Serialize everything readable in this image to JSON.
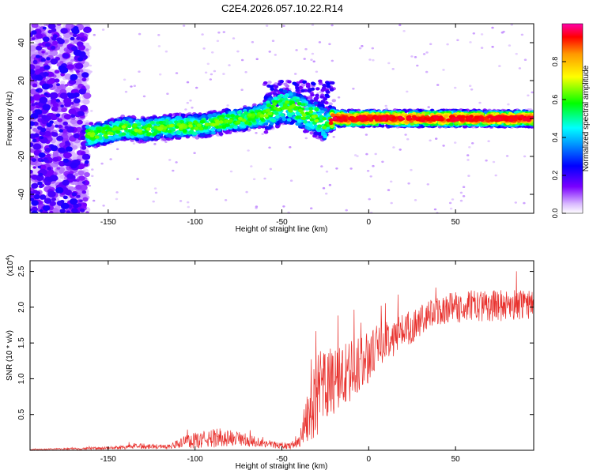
{
  "title": "C2E4.2026.057.10.22.R14",
  "chart_data": [
    {
      "type": "heatmap",
      "title": "C2E4.2026.057.10.22.R14",
      "xlabel": "Height of straight line (km)",
      "ylabel": "Frequency (Hz)",
      "xlim": [
        -195,
        95
      ],
      "ylim": [
        -50,
        50
      ],
      "xticks": [
        -150,
        -100,
        -50,
        0,
        50
      ],
      "yticks": [
        -40,
        -20,
        0,
        20,
        40
      ],
      "colorbar": {
        "label": "Normalized spectral amplitude",
        "range": [
          0,
          1
        ],
        "ticks": [
          "0.0",
          "0.2",
          "0.4",
          "0.6",
          "0.8"
        ],
        "tick_values": [
          0.0,
          0.2,
          0.4,
          0.6,
          0.8
        ]
      },
      "ridge": {
        "x": [
          -160,
          -150,
          -140,
          -130,
          -120,
          -110,
          -100,
          -90,
          -80,
          -70,
          -60,
          -55,
          -50,
          -45,
          -40,
          -35,
          -30,
          -25,
          -20,
          -10,
          0,
          10,
          20,
          30,
          40,
          50,
          60,
          70,
          80,
          90
        ],
        "y": [
          -9,
          -7,
          -5,
          -6,
          -5,
          -4,
          -4,
          -3,
          -1,
          0,
          2,
          4,
          7,
          6,
          4,
          2,
          0,
          -3,
          0,
          0,
          0,
          0,
          0,
          0,
          0,
          0,
          0,
          0,
          0,
          0
        ]
      },
      "noise_region_x": [
        -195,
        -162
      ]
    },
    {
      "type": "line",
      "xlabel": "Height of straight line (km)",
      "ylabel": "SNR (10 * v/v)",
      "y_multiplier": "(x10",
      "y_multiplier_exp": "4",
      "y_multiplier_close": ")",
      "xlim": [
        -195,
        95
      ],
      "ylim": [
        0,
        2.65
      ],
      "xticks": [
        -150,
        -100,
        -50,
        0,
        50
      ],
      "yticks": [
        "0.5",
        "1.0",
        "1.5",
        "2.0",
        "2.5"
      ],
      "ytick_values": [
        0.5,
        1.0,
        1.5,
        2.0,
        2.5
      ],
      "series_color": "#e8302c",
      "envelope": {
        "x": [
          -195,
          -150,
          -130,
          -115,
          -105,
          -95,
          -85,
          -75,
          -65,
          -55,
          -45,
          -40,
          -35,
          -30,
          -25,
          -20,
          -15,
          -10,
          -5,
          0,
          5,
          10,
          15,
          20,
          30,
          40,
          50,
          60,
          70,
          80,
          95
        ],
        "mean": [
          0.01,
          0.03,
          0.06,
          0.05,
          0.12,
          0.15,
          0.18,
          0.16,
          0.12,
          0.08,
          0.06,
          0.12,
          0.5,
          0.75,
          0.9,
          0.95,
          1.05,
          1.1,
          1.2,
          1.3,
          1.45,
          1.55,
          1.6,
          1.68,
          1.8,
          1.95,
          2.0,
          2.02,
          2.02,
          2.03,
          2.05
        ],
        "amp": [
          0.005,
          0.02,
          0.04,
          0.03,
          0.1,
          0.12,
          0.14,
          0.1,
          0.08,
          0.05,
          0.04,
          0.08,
          0.4,
          0.55,
          0.6,
          0.5,
          0.45,
          0.45,
          0.4,
          0.35,
          0.3,
          0.28,
          0.28,
          0.25,
          0.22,
          0.22,
          0.22,
          0.22,
          0.22,
          0.22,
          0.22
        ]
      }
    }
  ]
}
